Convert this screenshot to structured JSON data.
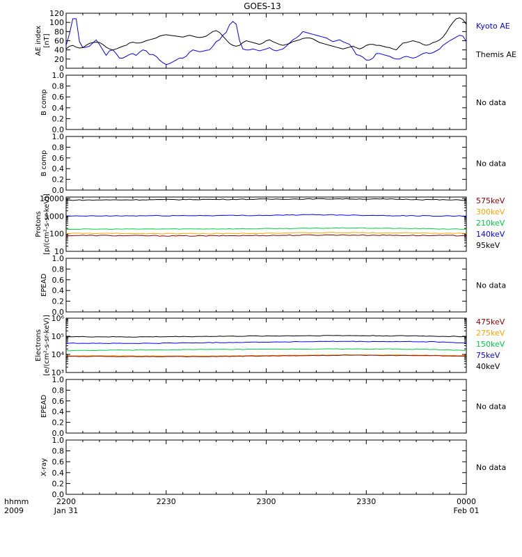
{
  "figure": {
    "title": "GOES-13",
    "time_axis": {
      "row1_label": "hhmm",
      "row2_label": "2009",
      "start": "2009-01-31T22:00",
      "end": "2009-02-01T00:00",
      "ticks": [
        {
          "t": 0,
          "label": "2200",
          "sublabel": "Jan 31"
        },
        {
          "t": 30,
          "label": "2230",
          "sublabel": ""
        },
        {
          "t": 60,
          "label": "2300",
          "sublabel": ""
        },
        {
          "t": 90,
          "label": "2330",
          "sublabel": ""
        },
        {
          "t": 120,
          "label": "0000",
          "sublabel": "Feb 01"
        }
      ]
    },
    "no_data_text": "No data"
  },
  "chart_data": [
    {
      "type": "line",
      "id": "ae",
      "ylabel": [
        "AE index",
        "[nT]"
      ],
      "ylim": [
        0,
        120
      ],
      "yticks": [
        {
          "v": 0,
          "label": "0"
        },
        {
          "v": 20,
          "label": "20"
        },
        {
          "v": 40,
          "label": "40"
        },
        {
          "v": 60,
          "label": "60"
        },
        {
          "v": 80,
          "label": "80"
        },
        {
          "v": 100,
          "label": "100"
        },
        {
          "v": 120,
          "label": "120"
        }
      ],
      "legend": [
        {
          "text": "Kyoto AE",
          "color": "#0000ff"
        },
        {
          "text": "Themis AE",
          "color": "#000000"
        }
      ],
      "series": [
        {
          "name": "Kyoto AE",
          "color": "#0000ff",
          "x": [
            0,
            1,
            2,
            3,
            4,
            5,
            6,
            7,
            8,
            9,
            10,
            11,
            12,
            13,
            14,
            15,
            16,
            17,
            18,
            19,
            20,
            21,
            22,
            23,
            24,
            25,
            26,
            27,
            28,
            29,
            30,
            31,
            32,
            33,
            34,
            35,
            36,
            37,
            38,
            39,
            40,
            41,
            42,
            43,
            44,
            45,
            46,
            47,
            48,
            49,
            50,
            51,
            52,
            53,
            54,
            55,
            56,
            57,
            58,
            59,
            60,
            61,
            62,
            63,
            64,
            65,
            66,
            67,
            68,
            69,
            70,
            71,
            72,
            73,
            74,
            75,
            76,
            77,
            78,
            79,
            80,
            81,
            82,
            83,
            84,
            85,
            86,
            87,
            88,
            89,
            90,
            91,
            92,
            93,
            94,
            95,
            96,
            97,
            98,
            99,
            100,
            101,
            102,
            103,
            104,
            105,
            106,
            107,
            108,
            109,
            110,
            111,
            112,
            113,
            114,
            115,
            116,
            117,
            118,
            119,
            120
          ],
          "y": [
            50,
            75,
            108,
            108,
            58,
            45,
            46,
            48,
            55,
            62,
            52,
            40,
            28,
            38,
            40,
            32,
            22,
            22,
            26,
            30,
            32,
            28,
            35,
            40,
            38,
            30,
            30,
            26,
            18,
            12,
            8,
            10,
            14,
            18,
            22,
            22,
            26,
            35,
            40,
            38,
            36,
            37,
            39,
            40,
            48,
            58,
            62,
            72,
            78,
            95,
            102,
            96,
            60,
            42,
            40,
            40,
            42,
            40,
            38,
            40,
            42,
            45,
            40,
            38,
            40,
            42,
            48,
            55,
            62,
            66,
            72,
            80,
            78,
            76,
            74,
            72,
            70,
            68,
            66,
            62,
            58,
            60,
            62,
            58,
            55,
            52,
            42,
            30,
            28,
            24,
            18,
            18,
            22,
            32,
            32,
            30,
            28,
            26,
            22,
            20,
            20,
            24,
            26,
            24,
            22,
            24,
            28,
            32,
            34,
            32,
            34,
            38,
            42,
            50,
            55,
            60,
            64,
            68,
            72,
            70,
            58
          ]
        },
        {
          "name": "Themis AE",
          "color": "#000000",
          "x": [
            0,
            1,
            2,
            3,
            4,
            5,
            6,
            7,
            8,
            9,
            10,
            11,
            12,
            13,
            14,
            15,
            16,
            17,
            18,
            19,
            20,
            21,
            22,
            23,
            24,
            25,
            26,
            27,
            28,
            29,
            30,
            31,
            32,
            33,
            34,
            35,
            36,
            37,
            38,
            39,
            40,
            41,
            42,
            43,
            44,
            45,
            46,
            47,
            48,
            49,
            50,
            51,
            52,
            53,
            54,
            55,
            56,
            57,
            58,
            59,
            60,
            61,
            62,
            63,
            64,
            65,
            66,
            67,
            68,
            69,
            70,
            71,
            72,
            73,
            74,
            75,
            76,
            77,
            78,
            79,
            80,
            81,
            82,
            83,
            84,
            85,
            86,
            87,
            88,
            89,
            90,
            91,
            92,
            93,
            94,
            95,
            96,
            97,
            98,
            99,
            100,
            101,
            102,
            103,
            104,
            105,
            106,
            107,
            108,
            109,
            110,
            111,
            112,
            113,
            114,
            115,
            116,
            117,
            118,
            119,
            120
          ],
          "y": [
            42,
            48,
            50,
            46,
            44,
            45,
            50,
            54,
            56,
            57,
            56,
            52,
            46,
            42,
            40,
            42,
            45,
            48,
            50,
            55,
            57,
            55,
            55,
            57,
            60,
            62,
            64,
            66,
            70,
            72,
            73,
            72,
            71,
            70,
            69,
            68,
            70,
            72,
            70,
            68,
            67,
            68,
            70,
            75,
            80,
            82,
            78,
            70,
            62,
            54,
            50,
            48,
            50,
            56,
            60,
            58,
            56,
            54,
            52,
            55,
            60,
            62,
            58,
            55,
            52,
            50,
            52,
            54,
            58,
            60,
            62,
            65,
            66,
            66,
            64,
            60,
            56,
            54,
            52,
            50,
            48,
            46,
            44,
            42,
            44,
            46,
            48,
            45,
            42,
            45,
            50,
            52,
            52,
            50,
            50,
            48,
            46,
            45,
            42,
            40,
            48,
            55,
            56,
            58,
            60,
            58,
            56,
            52,
            50,
            52,
            56,
            58,
            62,
            68,
            78,
            90,
            100,
            108,
            110,
            106,
            96
          ]
        }
      ]
    },
    {
      "type": "line",
      "id": "bcomp1",
      "ylabel": [
        "B comp"
      ],
      "ylim": [
        0,
        1
      ],
      "yticks": [
        {
          "v": 0,
          "label": "0.0"
        },
        {
          "v": 0.2,
          "label": "0.2"
        },
        {
          "v": 0.4,
          "label": "0.4"
        },
        {
          "v": 0.6,
          "label": "0.6"
        },
        {
          "v": 0.8,
          "label": "0.8"
        },
        {
          "v": 1,
          "label": "1.0"
        }
      ],
      "no_data": true,
      "series": []
    },
    {
      "type": "line",
      "id": "bcomp2",
      "ylabel": [
        "B comp"
      ],
      "ylim": [
        0,
        1
      ],
      "yticks": [
        {
          "v": 0,
          "label": "0.0"
        },
        {
          "v": 0.2,
          "label": "0.2"
        },
        {
          "v": 0.4,
          "label": "0.4"
        },
        {
          "v": 0.6,
          "label": "0.6"
        },
        {
          "v": 0.8,
          "label": "0.8"
        },
        {
          "v": 1,
          "label": "1.0"
        }
      ],
      "no_data": true,
      "series": []
    },
    {
      "type": "line",
      "id": "protons",
      "log": true,
      "ylabel": [
        "Protons",
        "[p/(cm²-s-sr-keV)]"
      ],
      "ylim": [
        10,
        12000
      ],
      "yticks": [
        {
          "v": 10,
          "label": "10"
        },
        {
          "v": 100,
          "label": "100"
        },
        {
          "v": 1000,
          "label": "1000"
        },
        {
          "v": 10000,
          "label": "10000"
        }
      ],
      "legend": [
        {
          "text": "575keV",
          "color": "#8b0000"
        },
        {
          "text": "300keV",
          "color": "#ffa500"
        },
        {
          "text": "210keV",
          "color": "#00cc44"
        },
        {
          "text": "140keV",
          "color": "#0000ff"
        },
        {
          "text": "95keV",
          "color": "#000000"
        }
      ],
      "series": [
        {
          "name": "95keV",
          "color": "#000000",
          "base": 8000,
          "jitter": 0.05,
          "bumps": [
            [
              55,
              9000
            ],
            [
              82,
              9500
            ],
            [
              100,
              9000
            ]
          ]
        },
        {
          "name": "140keV",
          "color": "#0000ff",
          "base": 1000,
          "jitter": 0.05,
          "bumps": [
            [
              60,
              1100
            ],
            [
              75,
              1200
            ],
            [
              100,
              1050
            ]
          ]
        },
        {
          "name": "210keV",
          "color": "#00cc44",
          "base": 180,
          "jitter": 0.04,
          "bumps": [
            [
              55,
              190
            ],
            [
              85,
              210
            ],
            [
              100,
              200
            ]
          ]
        },
        {
          "name": "300keV",
          "color": "#ffa500",
          "base": 105,
          "jitter": 0.05,
          "bumps": [
            [
              40,
              100
            ],
            [
              80,
              115
            ],
            [
              110,
              110
            ]
          ]
        },
        {
          "name": "575keV",
          "color": "#8b0000",
          "base": 80,
          "jitter": 0.06,
          "bumps": [
            [
              40,
              75
            ],
            [
              80,
              85
            ],
            [
              115,
              78
            ]
          ]
        }
      ]
    },
    {
      "type": "line",
      "id": "epead1",
      "ylabel": [
        "EPEAD"
      ],
      "ylim": [
        0,
        1
      ],
      "yticks": [
        {
          "v": 0,
          "label": "0.0"
        },
        {
          "v": 0.2,
          "label": "0.2"
        },
        {
          "v": 0.4,
          "label": "0.4"
        },
        {
          "v": 0.6,
          "label": "0.6"
        },
        {
          "v": 0.8,
          "label": "0.8"
        },
        {
          "v": 1,
          "label": "1.0"
        }
      ],
      "no_data": true,
      "series": []
    },
    {
      "type": "line",
      "id": "electrons",
      "log": true,
      "ylabel": [
        "Electrons",
        "[e/(cm²-s-sr-keV)]"
      ],
      "ylim": [
        1000,
        1000000
      ],
      "yticks": [
        {
          "v": 1000,
          "label": "10³"
        },
        {
          "v": 10000,
          "label": "10⁴"
        },
        {
          "v": 100000,
          "label": "10⁵"
        },
        {
          "v": 1000000,
          "label": "10⁶"
        }
      ],
      "legend": [
        {
          "text": "475keV",
          "color": "#8b0000"
        },
        {
          "text": "275keV",
          "color": "#ffa500"
        },
        {
          "text": "150keV",
          "color": "#00cc44"
        },
        {
          "text": "75keV",
          "color": "#0000ff"
        },
        {
          "text": "40keV",
          "color": "#000000"
        }
      ],
      "series": [
        {
          "name": "40keV",
          "color": "#000000",
          "base": 95000,
          "jitter": 0.04,
          "bumps": [
            [
              20,
              92000
            ],
            [
              80,
              110000
            ],
            [
              105,
              105000
            ]
          ]
        },
        {
          "name": "75keV",
          "color": "#0000ff",
          "base": 42000,
          "jitter": 0.04,
          "bumps": [
            [
              20,
              40000
            ],
            [
              80,
              52000
            ],
            [
              110,
              50000
            ]
          ]
        },
        {
          "name": "150keV",
          "color": "#00cc44",
          "base": 16000,
          "jitter": 0.04,
          "bumps": [
            [
              30,
              18000
            ],
            [
              85,
              20000
            ],
            [
              110,
              19000
            ]
          ]
        },
        {
          "name": "275keV",
          "color": "#ffa500",
          "base": 8500,
          "jitter": 0.03,
          "bumps": [
            [
              40,
              8000
            ],
            [
              85,
              9500
            ],
            [
              110,
              9000
            ]
          ]
        },
        {
          "name": "475keV",
          "color": "#8b0000",
          "base": 7800,
          "jitter": 0.03,
          "bumps": [
            [
              40,
              7500
            ],
            [
              85,
              9000
            ],
            [
              110,
              8500
            ]
          ]
        }
      ]
    },
    {
      "type": "line",
      "id": "epead2",
      "ylabel": [
        "EPEAD"
      ],
      "ylim": [
        0,
        1
      ],
      "yticks": [
        {
          "v": 0,
          "label": "0.0"
        },
        {
          "v": 0.2,
          "label": "0.2"
        },
        {
          "v": 0.4,
          "label": "0.4"
        },
        {
          "v": 0.6,
          "label": "0.6"
        },
        {
          "v": 0.8,
          "label": "0.8"
        },
        {
          "v": 1,
          "label": "1.0"
        }
      ],
      "no_data": true,
      "series": []
    },
    {
      "type": "line",
      "id": "xray",
      "ylabel": [
        "X-ray"
      ],
      "ylim": [
        0,
        1
      ],
      "yticks": [
        {
          "v": 0,
          "label": "0.0"
        },
        {
          "v": 0.2,
          "label": "0.2"
        },
        {
          "v": 0.4,
          "label": "0.4"
        },
        {
          "v": 0.6,
          "label": "0.6"
        },
        {
          "v": 0.8,
          "label": "0.8"
        },
        {
          "v": 1,
          "label": "1.0"
        }
      ],
      "no_data": true,
      "series": []
    }
  ]
}
